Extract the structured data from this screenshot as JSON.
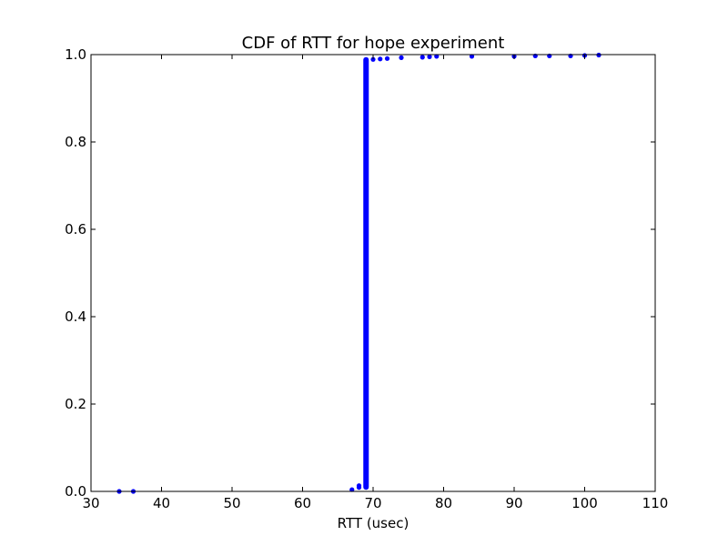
{
  "chart_data": {
    "type": "scatter",
    "title": "CDF of RTT for hope experiment",
    "xlabel": "RTT (usec)",
    "ylabel": "",
    "xlim": [
      30,
      110
    ],
    "ylim": [
      0.0,
      1.0
    ],
    "x_ticks": [
      30,
      40,
      50,
      60,
      70,
      80,
      90,
      100,
      110
    ],
    "y_ticks": [
      0.0,
      0.2,
      0.4,
      0.6,
      0.8,
      1.0
    ],
    "x_tick_labels": [
      "30",
      "40",
      "50",
      "60",
      "70",
      "80",
      "90",
      "100",
      "110"
    ],
    "y_tick_labels": [
      "0.0",
      "0.2",
      "0.4",
      "0.6",
      "0.8",
      "1.0"
    ],
    "grid": false,
    "legend": "none",
    "marker_color": "#0000ff",
    "dense_segment": {
      "x": 69,
      "y_from": 0.01,
      "y_to": 0.988
    },
    "points": [
      {
        "x": 34,
        "y": 0.0
      },
      {
        "x": 36,
        "y": 0.0
      },
      {
        "x": 67,
        "y": 0.004
      },
      {
        "x": 68,
        "y": 0.009
      },
      {
        "x": 68,
        "y": 0.013
      },
      {
        "x": 69,
        "y": 0.988
      },
      {
        "x": 70,
        "y": 0.989
      },
      {
        "x": 71,
        "y": 0.99
      },
      {
        "x": 72,
        "y": 0.991
      },
      {
        "x": 74,
        "y": 0.993
      },
      {
        "x": 77,
        "y": 0.994
      },
      {
        "x": 78,
        "y": 0.995
      },
      {
        "x": 79,
        "y": 0.996
      },
      {
        "x": 84,
        "y": 0.996
      },
      {
        "x": 90,
        "y": 0.996
      },
      {
        "x": 93,
        "y": 0.997
      },
      {
        "x": 95,
        "y": 0.997
      },
      {
        "x": 98,
        "y": 0.997
      },
      {
        "x": 100,
        "y": 0.998
      },
      {
        "x": 102,
        "y": 0.999
      }
    ]
  }
}
